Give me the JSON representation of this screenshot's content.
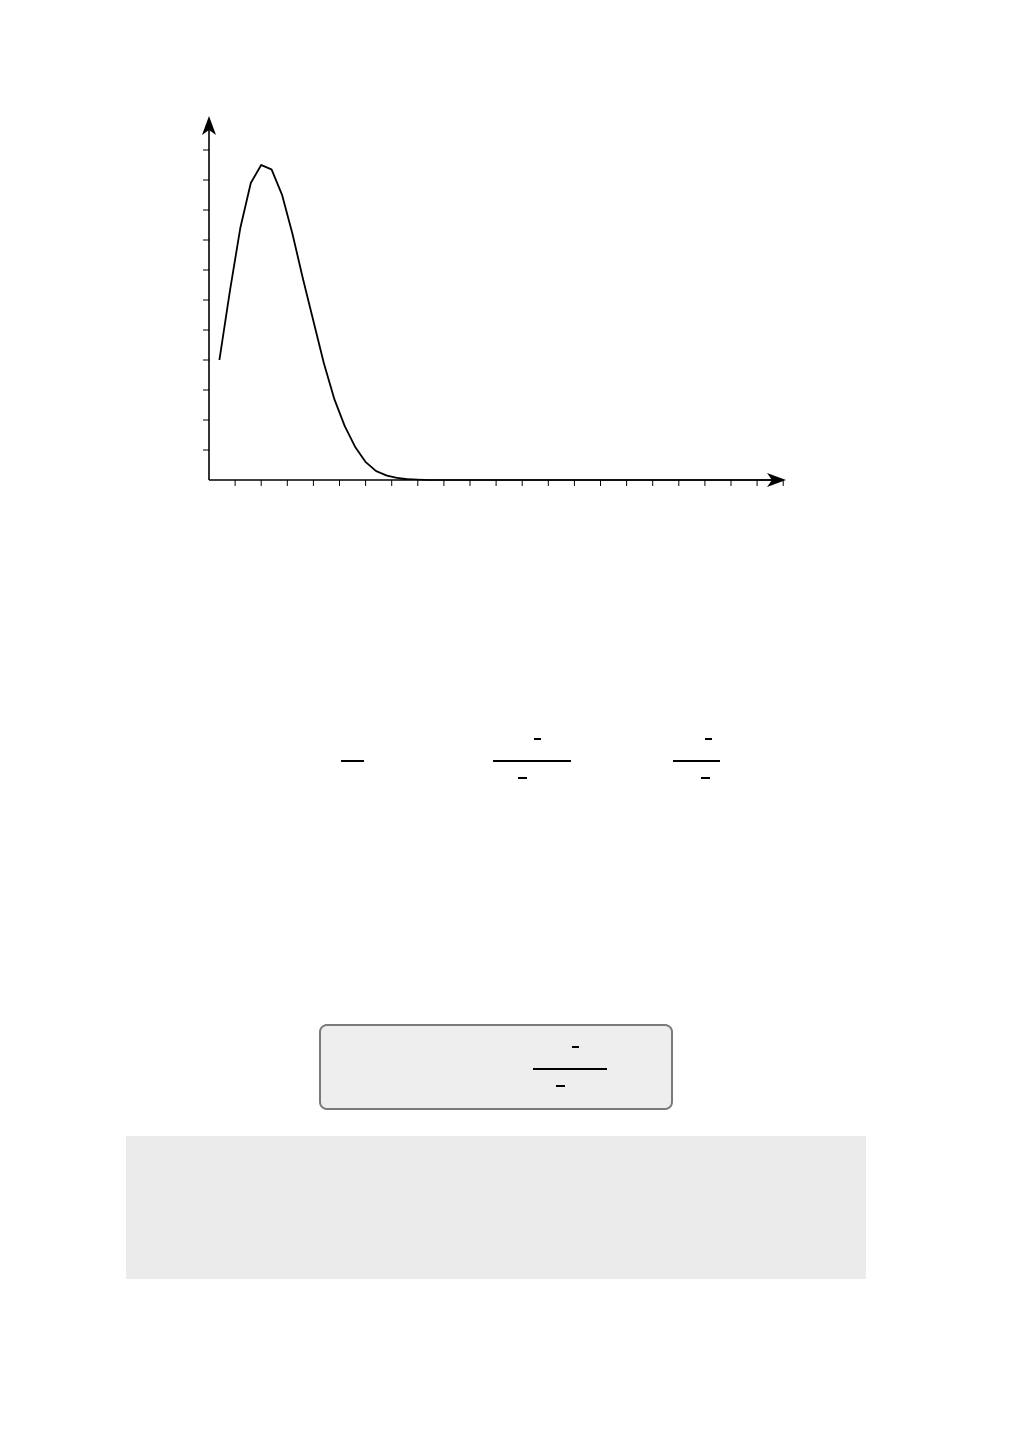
{
  "chart_data": {
    "type": "line",
    "title": "",
    "xlabel": "",
    "ylabel": "",
    "xlim": [
      0,
      22
    ],
    "ylim": [
      0,
      11
    ],
    "x_ticks": 22,
    "y_ticks": 11,
    "grid": false,
    "series": [
      {
        "x": [
          0.4,
          0.8,
          1.2,
          1.6,
          2.0,
          2.4,
          2.8,
          3.2,
          3.6,
          4.0,
          4.4,
          4.8,
          5.2,
          5.6,
          6.0,
          6.4,
          6.8,
          7.2,
          7.6,
          8.0,
          8.4,
          8.8,
          9.2,
          9.6,
          10.0,
          11.0,
          12.0,
          14.0,
          17.0,
          20.0,
          22.0
        ],
        "y": [
          4.0,
          6.3,
          8.4,
          9.9,
          10.5,
          10.35,
          9.5,
          8.2,
          6.7,
          5.3,
          3.9,
          2.7,
          1.8,
          1.1,
          0.6,
          0.3,
          0.15,
          0.07,
          0.03,
          0.01,
          0.0,
          0.0,
          0.0,
          0.0,
          0.0,
          0.0,
          0.0,
          0.0,
          0.0,
          0.0,
          0.0
        ]
      }
    ]
  },
  "equation": {
    "term1": {
      "bar": true
    },
    "term2": {
      "numerator_minus": true,
      "denominator_minus": true
    },
    "term3": {
      "numerator_minus": true,
      "denominator_minus": true
    }
  },
  "highlight_box": {
    "background": "#eeeeee",
    "border": "#7a7a7a",
    "fraction": {
      "numerator_minus": true,
      "denominator_minus": true
    }
  },
  "note_panel": {
    "background": "#ebebeb"
  }
}
